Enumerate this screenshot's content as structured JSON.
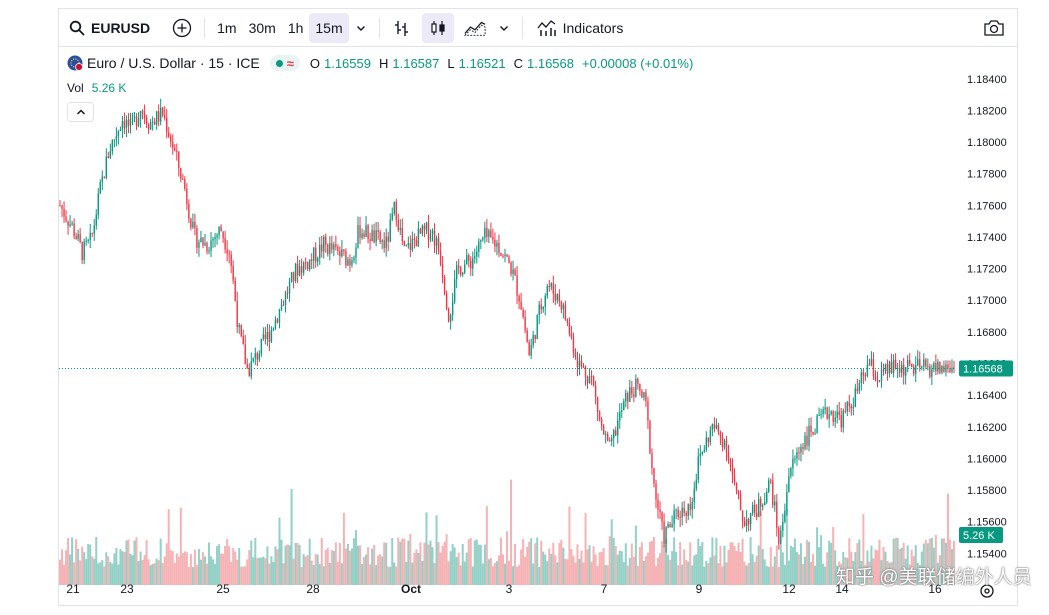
{
  "toolbar": {
    "symbol": "EURUSD",
    "timeframes": [
      "1m",
      "30m",
      "1h",
      "15m"
    ],
    "active_timeframe": "15m",
    "indicators_label": "Indicators"
  },
  "legend": {
    "instrument": "Euro / U.S. Dollar · 15 · ICE",
    "open_label": "O",
    "open": "1.16559",
    "high_label": "H",
    "high": "1.16587",
    "low_label": "L",
    "low": "1.16521",
    "close_label": "C",
    "close": "1.16568",
    "change": "+0.00008 (+0.01%)",
    "vol_label": "Vol",
    "vol_value": "5.26 K"
  },
  "price_axis": {
    "ticks": [
      "1.18400",
      "1.18200",
      "1.18000",
      "1.17800",
      "1.17600",
      "1.17400",
      "1.17200",
      "1.17000",
      "1.16800",
      "1.16600",
      "1.16400",
      "1.16200",
      "1.16000",
      "1.15800",
      "1.15600",
      "1.15400"
    ],
    "last_price": "1.16568",
    "last_volume": "5.26 K"
  },
  "time_axis": {
    "labels": [
      "21",
      "23",
      "25",
      "28",
      "Oct",
      "3",
      "7",
      "9",
      "12",
      "14",
      "16"
    ]
  },
  "watermark": "知乎 @美联储编外人员",
  "colors": {
    "up": "#089981",
    "down": "#f23645",
    "vol_up": "#80c9bd",
    "vol_down": "#f5a6a8"
  },
  "chart_data": {
    "type": "candlestick",
    "instrument": "Euro / U.S. Dollar",
    "interval": "15",
    "ylim": [
      1.1525,
      1.185
    ],
    "y_ticks": [
      1.184,
      1.182,
      1.18,
      1.178,
      1.176,
      1.174,
      1.172,
      1.17,
      1.168,
      1.166,
      1.164,
      1.162,
      1.16,
      1.158,
      1.156,
      1.154
    ],
    "x_tick_labels": [
      "21",
      "23",
      "25",
      "28",
      "Oct",
      "3",
      "7",
      "9",
      "12",
      "14",
      "16"
    ],
    "last": {
      "open": 1.16559,
      "high": 1.16587,
      "low": 1.16521,
      "close": 1.16568,
      "change": 8e-05,
      "change_pct": 0.01,
      "volume": "5.26 K"
    },
    "price_path": [
      [
        0.0,
        1.176
      ],
      [
        0.015,
        1.1745
      ],
      [
        0.025,
        1.173
      ],
      [
        0.035,
        1.1738
      ],
      [
        0.045,
        1.177
      ],
      [
        0.055,
        1.1795
      ],
      [
        0.07,
        1.1815
      ],
      [
        0.08,
        1.1808
      ],
      [
        0.09,
        1.1822
      ],
      [
        0.1,
        1.1812
      ],
      [
        0.115,
        1.1818
      ],
      [
        0.125,
        1.18
      ],
      [
        0.14,
        1.177
      ],
      [
        0.15,
        1.174
      ],
      [
        0.165,
        1.1735
      ],
      [
        0.18,
        1.1745
      ],
      [
        0.19,
        1.173
      ],
      [
        0.2,
        1.168
      ],
      [
        0.21,
        1.1655
      ],
      [
        0.22,
        1.1665
      ],
      [
        0.235,
        1.168
      ],
      [
        0.25,
        1.17
      ],
      [
        0.265,
        1.172
      ],
      [
        0.28,
        1.1725
      ],
      [
        0.295,
        1.1735
      ],
      [
        0.31,
        1.173
      ],
      [
        0.325,
        1.1725
      ],
      [
        0.335,
        1.1745
      ],
      [
        0.35,
        1.174
      ],
      [
        0.365,
        1.1735
      ],
      [
        0.375,
        1.176
      ],
      [
        0.385,
        1.173
      ],
      [
        0.4,
        1.174
      ],
      [
        0.415,
        1.1745
      ],
      [
        0.425,
        1.173
      ],
      [
        0.435,
        1.169
      ],
      [
        0.445,
        1.172
      ],
      [
        0.46,
        1.1725
      ],
      [
        0.475,
        1.174
      ],
      [
        0.49,
        1.1735
      ],
      [
        0.505,
        1.172
      ],
      [
        0.515,
        1.17
      ],
      [
        0.525,
        1.1665
      ],
      [
        0.535,
        1.169
      ],
      [
        0.545,
        1.171
      ],
      [
        0.56,
        1.17
      ],
      [
        0.57,
        1.168
      ],
      [
        0.58,
        1.166
      ],
      [
        0.595,
        1.165
      ],
      [
        0.605,
        1.162
      ],
      [
        0.615,
        1.1605
      ],
      [
        0.625,
        1.1625
      ],
      [
        0.635,
        1.164
      ],
      [
        0.645,
        1.1645
      ],
      [
        0.655,
        1.1635
      ],
      [
        0.665,
        1.158
      ],
      [
        0.675,
        1.155
      ],
      [
        0.69,
        1.1565
      ],
      [
        0.705,
        1.157
      ],
      [
        0.715,
        1.16
      ],
      [
        0.73,
        1.162
      ],
      [
        0.745,
        1.161
      ],
      [
        0.755,
        1.158
      ],
      [
        0.765,
        1.156
      ],
      [
        0.78,
        1.1568
      ],
      [
        0.795,
        1.1585
      ],
      [
        0.805,
        1.1545
      ],
      [
        0.815,
        1.159
      ],
      [
        0.83,
        1.161
      ],
      [
        0.845,
        1.162
      ],
      [
        0.86,
        1.163
      ],
      [
        0.875,
        1.1625
      ],
      [
        0.89,
        1.164
      ],
      [
        0.905,
        1.166
      ],
      [
        0.915,
        1.165
      ],
      [
        0.93,
        1.1657
      ]
    ]
  }
}
